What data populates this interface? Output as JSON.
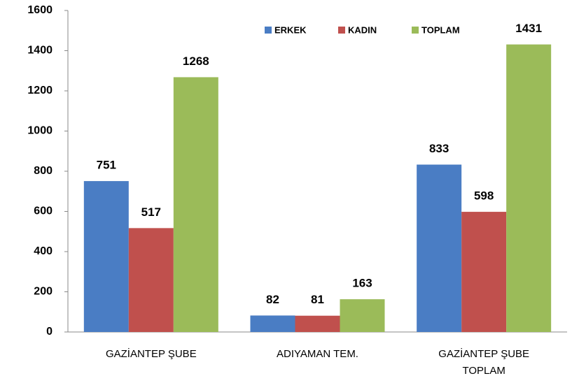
{
  "chart_data": {
    "type": "bar",
    "categories": [
      "GAZİANTEP ŞUBE",
      "ADIYAMAN TEM.",
      "GAZİANTEP ŞUBE TOPLAM"
    ],
    "series": [
      {
        "name": "ERKEK",
        "color": "#4a7dc4",
        "values": [
          751,
          82,
          833
        ]
      },
      {
        "name": "KADIN",
        "color": "#c0504d",
        "values": [
          517,
          81,
          598
        ]
      },
      {
        "name": "TOPLAM",
        "color": "#9bbb59",
        "values": [
          1268,
          163,
          1431
        ]
      }
    ],
    "ylim": [
      0,
      1600
    ],
    "yticks": [
      0,
      200,
      400,
      600,
      800,
      1000,
      1200,
      1400,
      1600
    ],
    "grid": false,
    "legend": "top"
  }
}
